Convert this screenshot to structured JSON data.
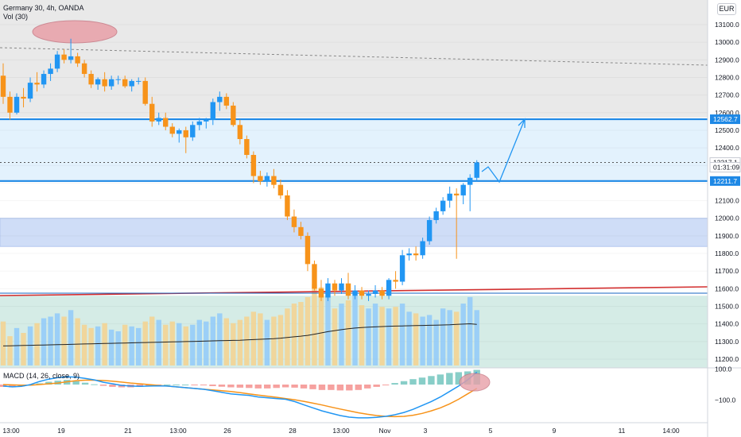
{
  "header": {
    "title": "Germany 30, 4h, OANDA",
    "volume_label": "Vol (30)",
    "currency": "EUR"
  },
  "macd_label": "MACD (14, 26, close, 9)",
  "colors": {
    "up": "#2196f3",
    "down": "#f7931a",
    "level_line": "#1e88e5",
    "trend_red": "#d32f2f",
    "annotation": "#e8a0a8",
    "macd_line": "#2196f3",
    "signal_line": "#f7931a",
    "hist_pos": "#26a69a",
    "hist_neg": "#ef5350"
  },
  "chart_data": {
    "type": "candlestick",
    "instrument": "Germany 30",
    "timeframe": "4h",
    "source": "OANDA",
    "ylim": [
      11150,
      13230
    ],
    "y_ticks": [
      11200,
      11300,
      11400,
      11500,
      11600,
      11700,
      11800,
      11900,
      12000,
      12100,
      12200,
      12300,
      12400,
      12500,
      12600,
      12700,
      12800,
      12900,
      13000,
      13100
    ],
    "x_ticks": [
      "13:00",
      "19",
      "21",
      "13:00",
      "26",
      "28",
      "13:00",
      "Nov",
      "3",
      "5",
      "9",
      "11",
      "14:00"
    ],
    "price_labels": [
      {
        "text": "12562.7",
        "value": 12562.7,
        "kind": "level"
      },
      {
        "text": "12317.1",
        "value": 12317.1,
        "kind": "last"
      },
      {
        "text": "01:31:09",
        "value": 12290,
        "kind": "countdown"
      },
      {
        "text": "12211.7",
        "value": 12211.7,
        "kind": "level"
      }
    ],
    "horizontal_levels": [
      12562.7,
      12211.7
    ],
    "zones": [
      {
        "from": 12562.7,
        "to": 12211.7,
        "color": "#e3f2fd"
      },
      {
        "from": 12000,
        "to": 11840,
        "color": "#cfddf7"
      },
      {
        "from": 11560,
        "to": 11150,
        "color": "#d5ece6"
      }
    ],
    "candles": [
      [
        12810,
        12880,
        12650,
        12690
      ],
      [
        12690,
        12720,
        12560,
        12600
      ],
      [
        12600,
        12710,
        12590,
        12690
      ],
      [
        12690,
        12740,
        12630,
        12680
      ],
      [
        12680,
        12800,
        12660,
        12770
      ],
      [
        12770,
        12830,
        12720,
        12760
      ],
      [
        12760,
        12840,
        12740,
        12820
      ],
      [
        12820,
        12880,
        12780,
        12850
      ],
      [
        12850,
        12950,
        12830,
        12930
      ],
      [
        12930,
        12960,
        12880,
        12900
      ],
      [
        12900,
        13020,
        12880,
        12920
      ],
      [
        12920,
        12940,
        12860,
        12880
      ],
      [
        12880,
        12900,
        12800,
        12820
      ],
      [
        12820,
        12840,
        12740,
        12760
      ],
      [
        12760,
        12800,
        12730,
        12790
      ],
      [
        12790,
        12830,
        12720,
        12750
      ],
      [
        12750,
        12810,
        12730,
        12790
      ],
      [
        12790,
        12810,
        12760,
        12790
      ],
      [
        12790,
        12810,
        12740,
        12750
      ],
      [
        12750,
        12790,
        12720,
        12780
      ],
      [
        12780,
        12800,
        12760,
        12780
      ],
      [
        12780,
        12800,
        12640,
        12650
      ],
      [
        12650,
        12690,
        12520,
        12550
      ],
      [
        12550,
        12600,
        12530,
        12570
      ],
      [
        12570,
        12600,
        12500,
        12520
      ],
      [
        12520,
        12540,
        12460,
        12480
      ],
      [
        12480,
        12510,
        12430,
        12500
      ],
      [
        12500,
        12520,
        12370,
        12460
      ],
      [
        12460,
        12550,
        12440,
        12530
      ],
      [
        12530,
        12570,
        12500,
        12550
      ],
      [
        12550,
        12570,
        12510,
        12560
      ],
      [
        12560,
        12680,
        12530,
        12660
      ],
      [
        12660,
        12720,
        12610,
        12690
      ],
      [
        12690,
        12710,
        12620,
        12640
      ],
      [
        12640,
        12660,
        12520,
        12530
      ],
      [
        12530,
        12560,
        12420,
        12450
      ],
      [
        12450,
        12470,
        12340,
        12360
      ],
      [
        12360,
        12380,
        12200,
        12240
      ],
      [
        12240,
        12270,
        12190,
        12210
      ],
      [
        12210,
        12260,
        12180,
        12240
      ],
      [
        12240,
        12280,
        12170,
        12190
      ],
      [
        12190,
        12220,
        12110,
        12130
      ],
      [
        12130,
        12160,
        11990,
        12010
      ],
      [
        12010,
        12050,
        11920,
        11950
      ],
      [
        11950,
        11980,
        11880,
        11900
      ],
      [
        11900,
        11920,
        11700,
        11740
      ],
      [
        11740,
        11760,
        11590,
        11600
      ],
      [
        11600,
        11650,
        11530,
        11550
      ],
      [
        11550,
        11660,
        11530,
        11630
      ],
      [
        11630,
        11650,
        11560,
        11590
      ],
      [
        11590,
        11660,
        11570,
        11630
      ],
      [
        11630,
        11690,
        11540,
        11560
      ],
      [
        11560,
        11620,
        11540,
        11590
      ],
      [
        11590,
        11610,
        11540,
        11560
      ],
      [
        11560,
        11590,
        11530,
        11570
      ],
      [
        11570,
        11620,
        11550,
        11590
      ],
      [
        11590,
        11610,
        11540,
        11560
      ],
      [
        11560,
        11660,
        11540,
        11650
      ],
      [
        11650,
        11700,
        11600,
        11640
      ],
      [
        11640,
        11820,
        11620,
        11790
      ],
      [
        11790,
        11830,
        11760,
        11800
      ],
      [
        11800,
        11840,
        11760,
        11790
      ],
      [
        11790,
        11890,
        11770,
        11870
      ],
      [
        11870,
        12010,
        11850,
        11990
      ],
      [
        11990,
        12060,
        11970,
        12040
      ],
      [
        12040,
        12120,
        12020,
        12100
      ],
      [
        12100,
        12180,
        12060,
        12140
      ],
      [
        12140,
        12170,
        11770,
        12130
      ],
      [
        12130,
        12200,
        12080,
        12190
      ],
      [
        12190,
        12250,
        12040,
        12230
      ],
      [
        12230,
        12330,
        12210,
        12317.1
      ]
    ],
    "volume": [
      270,
      180,
      230,
      200,
      240,
      260,
      290,
      300,
      320,
      300,
      340,
      290,
      250,
      230,
      240,
      260,
      220,
      210,
      250,
      240,
      230,
      270,
      300,
      280,
      250,
      270,
      260,
      240,
      250,
      280,
      270,
      300,
      320,
      290,
      260,
      280,
      300,
      330,
      320,
      280,
      300,
      310,
      350,
      380,
      390,
      420,
      500,
      480,
      420,
      350,
      380,
      400,
      430,
      370,
      350,
      380,
      360,
      350,
      360,
      380,
      330,
      320,
      300,
      310,
      280,
      350,
      340,
      330,
      380,
      420,
      340
    ],
    "volume_ma": [
      120,
      121,
      122,
      123,
      124,
      125,
      126,
      127,
      128,
      129,
      130,
      131,
      132,
      133,
      134,
      135,
      136,
      137,
      138,
      139,
      140,
      141,
      142,
      143,
      144,
      145,
      146,
      147,
      148,
      149,
      150,
      151,
      152,
      153,
      154,
      155,
      157,
      159,
      161,
      163,
      165,
      168,
      172,
      176,
      180,
      185,
      192,
      200,
      208,
      214,
      220,
      226,
      230,
      233,
      235,
      237,
      239,
      241,
      242,
      243,
      244,
      245,
      246,
      247,
      248,
      249,
      250,
      252,
      254,
      256,
      252
    ],
    "macd": [
      -10,
      -15,
      -12,
      0,
      20,
      35,
      45,
      50,
      48,
      40,
      30,
      15,
      5,
      -5,
      -10,
      -12,
      -10,
      -8,
      -10,
      -15,
      -20,
      -25,
      -30,
      -40,
      -50,
      -60,
      -65,
      -70,
      -80,
      -85,
      -90,
      -95,
      -110,
      -130,
      -150,
      -170,
      -185,
      -200,
      -210,
      -215,
      -215,
      -212,
      -205,
      -195,
      -180,
      -160,
      -135,
      -110,
      -80,
      -45,
      -10,
      30,
      80
    ],
    "macd_signal": [
      0,
      -2,
      -4,
      -4,
      0,
      5,
      10,
      18,
      25,
      28,
      28,
      26,
      22,
      16,
      10,
      5,
      0,
      -5,
      -10,
      -15,
      -20,
      -25,
      -30,
      -35,
      -40,
      -45,
      -52,
      -60,
      -68,
      -75,
      -82,
      -90,
      -98,
      -108,
      -120,
      -132,
      -145,
      -158,
      -170,
      -182,
      -192,
      -200,
      -205,
      -207,
      -205,
      -198,
      -186,
      -170,
      -150,
      -125,
      -95,
      -60,
      -25
    ],
    "macd_hist": [
      -15,
      -18,
      -12,
      -6,
      8,
      18,
      25,
      30,
      22,
      12,
      2,
      -8,
      -15,
      -18,
      -18,
      -15,
      -10,
      -5,
      0,
      0,
      0,
      -2,
      -5,
      -10,
      -14,
      -18,
      -20,
      -22,
      -25,
      -25,
      -22,
      -18,
      -20,
      -25,
      -30,
      -35,
      -35,
      -38,
      -38,
      -35,
      -25,
      -15,
      -5,
      10,
      22,
      35,
      45,
      55,
      65,
      75,
      80,
      85,
      95
    ]
  }
}
